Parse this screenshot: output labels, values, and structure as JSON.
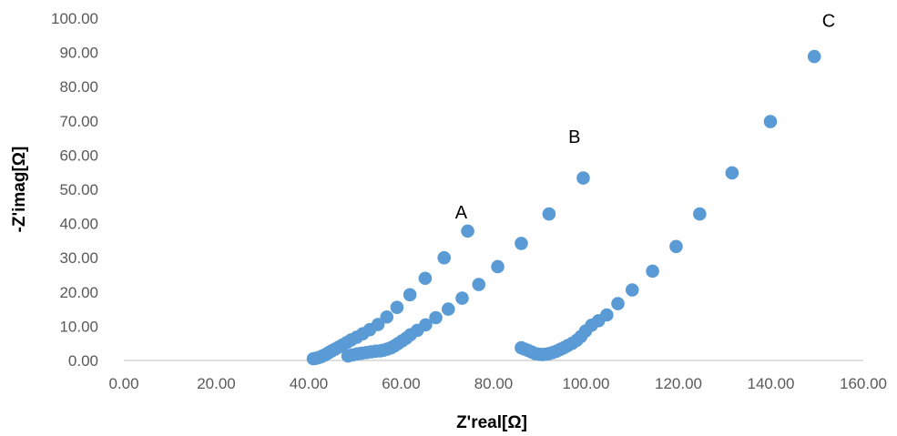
{
  "chart_data": {
    "type": "scatter",
    "xlabel": "Z'real[Ω]",
    "ylabel": "-Z'imag[Ω]",
    "xlim": [
      0,
      160
    ],
    "ylim": [
      0,
      100
    ],
    "grid": false,
    "x_ticks": [
      "0.00",
      "20.00",
      "40.00",
      "60.00",
      "80.00",
      "100.00",
      "120.00",
      "140.00",
      "160.00"
    ],
    "y_ticks": [
      "0.00",
      "10.00",
      "20.00",
      "30.00",
      "40.00",
      "50.00",
      "60.00",
      "70.00",
      "80.00",
      "90.00",
      "100.00"
    ],
    "marker_color": "#5b9bd5",
    "annotations": [
      {
        "text": "A",
        "x": 73.0,
        "y": 41.5
      },
      {
        "text": "B",
        "x": 97.5,
        "y": 63.5
      },
      {
        "text": "C",
        "x": 152.5,
        "y": 97.5
      }
    ],
    "series": [
      {
        "points": [
          [
            41.0,
            0.5
          ],
          [
            41.5,
            0.6
          ],
          [
            42.0,
            0.8
          ],
          [
            42.5,
            1.0
          ],
          [
            43.0,
            1.3
          ],
          [
            43.5,
            1.6
          ],
          [
            44.0,
            2.0
          ],
          [
            44.5,
            2.4
          ],
          [
            45.0,
            2.8
          ],
          [
            45.7,
            3.3
          ],
          [
            46.5,
            3.9
          ],
          [
            47.3,
            4.5
          ],
          [
            48.2,
            5.2
          ],
          [
            49.2,
            6.0
          ],
          [
            50.4,
            6.8
          ],
          [
            51.7,
            7.8
          ],
          [
            53.2,
            9.0
          ],
          [
            55.0,
            10.5
          ],
          [
            56.9,
            12.7
          ],
          [
            59.1,
            15.5
          ],
          [
            61.9,
            19.2
          ],
          [
            65.2,
            24.0
          ],
          [
            69.3,
            30.0
          ],
          [
            74.4,
            37.8
          ]
        ]
      },
      {
        "points": [
          [
            48.5,
            1.3
          ],
          [
            49.5,
            1.6
          ],
          [
            50.5,
            1.9
          ],
          [
            51.5,
            2.1
          ],
          [
            52.5,
            2.3
          ],
          [
            53.5,
            2.5
          ],
          [
            54.5,
            2.7
          ],
          [
            55.5,
            2.8
          ],
          [
            56.2,
            3.0
          ],
          [
            57.0,
            3.3
          ],
          [
            57.8,
            3.7
          ],
          [
            58.5,
            4.2
          ],
          [
            59.3,
            4.9
          ],
          [
            60.2,
            5.7
          ],
          [
            61.1,
            6.5
          ],
          [
            62.0,
            7.5
          ],
          [
            63.5,
            8.8
          ],
          [
            65.3,
            10.4
          ],
          [
            67.5,
            12.5
          ],
          [
            70.2,
            15.0
          ],
          [
            73.2,
            18.2
          ],
          [
            76.8,
            22.2
          ],
          [
            80.9,
            27.4
          ],
          [
            86.0,
            34.2
          ],
          [
            92.0,
            42.8
          ],
          [
            99.4,
            53.3
          ]
        ]
      },
      {
        "points": [
          [
            86.0,
            3.7
          ],
          [
            86.7,
            3.3
          ],
          [
            87.5,
            2.9
          ],
          [
            88.3,
            2.4
          ],
          [
            89.0,
            2.0
          ],
          [
            89.8,
            1.8
          ],
          [
            90.5,
            1.7
          ],
          [
            91.2,
            1.8
          ],
          [
            92.0,
            2.0
          ],
          [
            92.8,
            2.3
          ],
          [
            93.6,
            2.7
          ],
          [
            94.4,
            3.2
          ],
          [
            95.2,
            3.7
          ],
          [
            96.0,
            4.3
          ],
          [
            97.0,
            5.0
          ],
          [
            98.0,
            5.9
          ],
          [
            98.9,
            7.0
          ],
          [
            99.9,
            8.6
          ],
          [
            101.2,
            10.3
          ],
          [
            102.7,
            11.6
          ],
          [
            104.5,
            13.3
          ],
          [
            106.9,
            16.6
          ],
          [
            110.0,
            20.6
          ],
          [
            114.4,
            26.1
          ],
          [
            119.5,
            33.3
          ],
          [
            124.6,
            42.8
          ],
          [
            131.6,
            54.8
          ],
          [
            139.9,
            69.8
          ],
          [
            149.4,
            88.8
          ]
        ]
      }
    ]
  }
}
